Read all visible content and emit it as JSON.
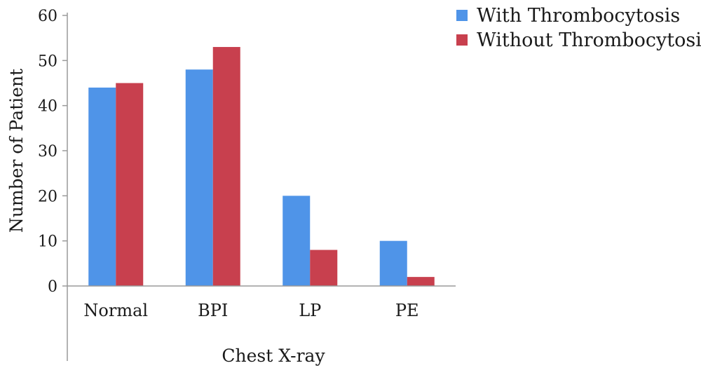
{
  "chart_data": {
    "type": "bar",
    "categories": [
      "Normal",
      "BPI",
      "LP",
      "PE"
    ],
    "series": [
      {
        "name": "With Thrombocytosis",
        "values": [
          44,
          48,
          20,
          10
        ],
        "color": "#4f94e8"
      },
      {
        "name": "Without Thrombocytosis",
        "values": [
          45,
          53,
          8,
          2
        ],
        "color": "#c8404e"
      }
    ],
    "xlabel": "Chest X-ray",
    "ylabel": "Number of Patient",
    "ylim": [
      0,
      60
    ],
    "yticks": [
      0,
      10,
      20,
      30,
      40,
      50,
      60
    ],
    "grid": false,
    "legend_position": "top-right"
  }
}
